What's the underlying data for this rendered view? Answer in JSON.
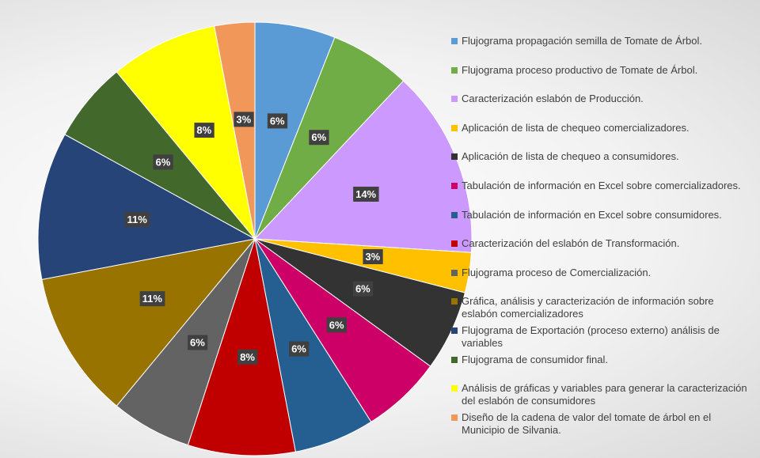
{
  "chart_data": {
    "type": "pie",
    "categories": [
      "Flujograma propagación semilla de Tomate de Árbol.",
      "Flujograma proceso productivo de Tomate de Árbol.",
      "Caracterización eslabón de Producción.",
      "Aplicación de lista de chequeo comercializadores.",
      "Aplicación de lista de chequeo a consumidores.",
      "Tabulación de información en Excel sobre comercializadores.",
      "Tabulación de información en Excel sobre consumidores.",
      "Caracterización del eslabón de Transformación.",
      "Flujograma proceso de Comercialización.",
      "Gráfica, análisis y caracterización de información sobre eslabón comercializadores",
      "Flujograma de Exportación (proceso externo) análisis de variables",
      "Flujograma de consumidor final.",
      "Análisis de gráficas y variables para generar la caracterización del eslabón de consumidores",
      "Diseño de la cadena de valor del tomate de árbol en el Municipio de Silvania."
    ],
    "values": [
      6,
      6,
      14,
      3,
      6,
      6,
      6,
      8,
      6,
      11,
      11,
      6,
      8,
      3
    ],
    "value_labels": [
      "6%",
      "6%",
      "14%",
      "3%",
      "6%",
      "6%",
      "6%",
      "8%",
      "6%",
      "11%",
      "11%",
      "6%",
      "8%",
      "3%"
    ],
    "colors": [
      "#5b9bd5",
      "#70ad47",
      "#cc99ff",
      "#ffc000",
      "#333333",
      "#cc0066",
      "#255e91",
      "#c00000",
      "#636363",
      "#997300",
      "#264478",
      "#43682b",
      "#ffff00",
      "#f1975a"
    ],
    "legend": "right"
  }
}
